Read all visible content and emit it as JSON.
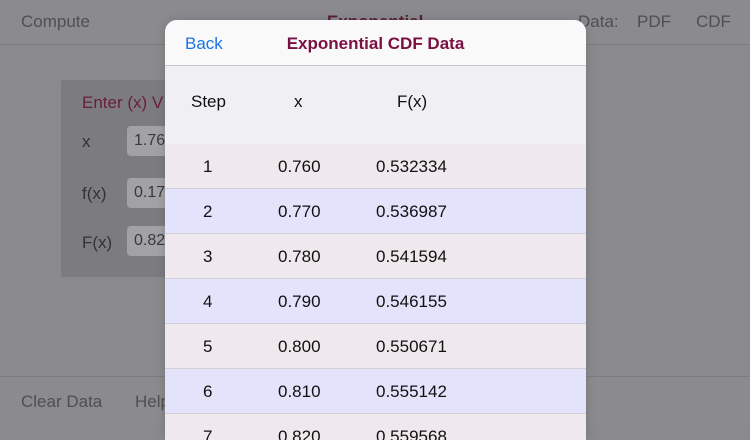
{
  "background": {
    "top_bar": {
      "compute": "Compute",
      "title": "Exponential",
      "data_label": "Data:",
      "pdf": "PDF",
      "cdf": "CDF"
    },
    "input_card": {
      "heading": "Enter (x) V",
      "x_label": "x",
      "x_value": "1.76",
      "fx_label": "f(x)",
      "fx_value": "0.17",
      "Fx_label": "F(x)",
      "Fx_value": "0.82"
    },
    "bottom_bar": {
      "clear_data": "Clear Data",
      "help": "Help"
    }
  },
  "modal": {
    "back_label": "Back",
    "title": "Exponential CDF Data",
    "accent_title_color": "#7a1042",
    "accent_link_color": "#1a73e8",
    "columns": [
      "Step",
      "x",
      "F(x)"
    ],
    "rows": [
      {
        "step": "1",
        "x": "0.760",
        "F": "0.532334"
      },
      {
        "step": "2",
        "x": "0.770",
        "F": "0.536987"
      },
      {
        "step": "3",
        "x": "0.780",
        "F": "0.541594"
      },
      {
        "step": "4",
        "x": "0.790",
        "F": "0.546155"
      },
      {
        "step": "5",
        "x": "0.800",
        "F": "0.550671"
      },
      {
        "step": "6",
        "x": "0.810",
        "F": "0.555142"
      },
      {
        "step": "7",
        "x": "0.820",
        "F": "0.559568"
      }
    ]
  }
}
